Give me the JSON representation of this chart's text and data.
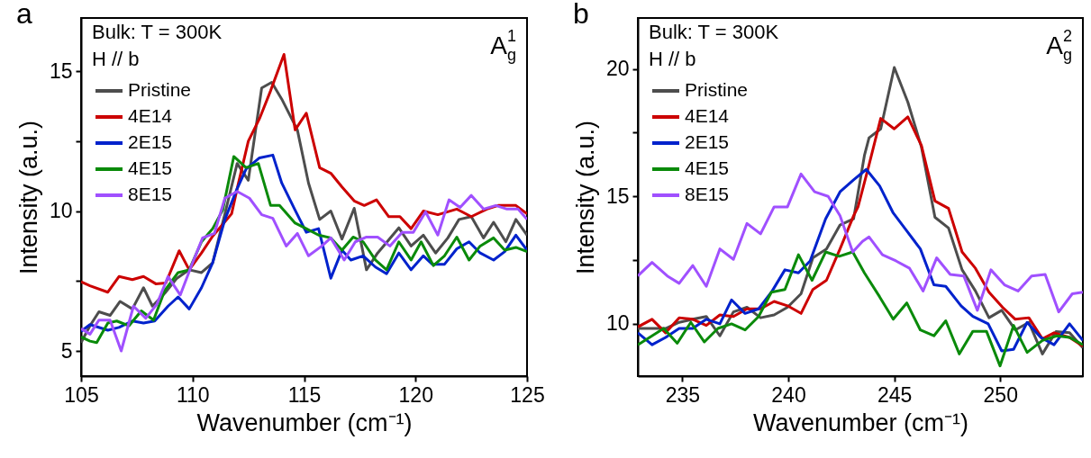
{
  "chart_data": [
    {
      "type": "line",
      "xlabel": "Wavenumber (cm⁻¹)",
      "ylabel": "Intensity (a.u.)",
      "annotations": [
        "a",
        "Bulk: T = 300K",
        "H // b",
        "A$_{g}$$^{1}$"
      ],
      "xlim": [
        105,
        125
      ],
      "xticks": [
        105,
        110,
        115,
        120,
        125
      ],
      "ylim": [
        4.1,
        16.9
      ],
      "yticks": [
        5,
        {
          "value": 7.5,
          "label": null
        },
        10,
        {
          "value": 12.5,
          "label": null
        },
        15
      ],
      "legend": "top left",
      "series": [
        {
          "name": "Pristine",
          "color": "#4d4d4d",
          "x": [
            105,
            105.4,
            105.8,
            106.3,
            106.75,
            107.3,
            107.8,
            108.2,
            108.75,
            109.3,
            109.85,
            110.4,
            110.9,
            111.45,
            112.0,
            112.5,
            113.1,
            113.55,
            114.0,
            114.7,
            115.2,
            115.7,
            116.2,
            116.7,
            117.25,
            117.8,
            118.3,
            119.25,
            119.8,
            120.35,
            120.9,
            121.45,
            121.95,
            122.5,
            123.05,
            123.5,
            124.05,
            124.5,
            125.0
          ],
          "values": [
            5.3,
            5.9,
            6.4,
            6.27,
            6.77,
            6.5,
            7.26,
            6.6,
            7.06,
            7.6,
            7.9,
            7.8,
            8.15,
            9.9,
            11.7,
            11.1,
            14.4,
            14.6,
            14.0,
            12.9,
            11.0,
            9.7,
            10.0,
            9.0,
            10.1,
            7.9,
            8.5,
            9.4,
            8.75,
            9.14,
            8.5,
            9.04,
            9.7,
            9.8,
            9.04,
            9.6,
            8.9,
            9.7,
            9.14
          ]
        },
        {
          "name": "4E14",
          "color": "#cc0000",
          "x": [
            105,
            105.4,
            106.2,
            106.7,
            107.3,
            107.8,
            108.35,
            108.8,
            109.4,
            109.85,
            110.4,
            110.9,
            111.75,
            112.0,
            112.5,
            113.0,
            113.5,
            114.1,
            114.6,
            115.1,
            115.7,
            116.2,
            116.7,
            117.25,
            117.7,
            118.25,
            118.8,
            119.3,
            119.8,
            120.35,
            121.0,
            121.85,
            122.5,
            123.2,
            123.7,
            124.5,
            125.0
          ],
          "values": [
            7.47,
            7.33,
            7.1,
            7.66,
            7.55,
            7.66,
            7.4,
            7.43,
            8.58,
            7.9,
            8.5,
            9.1,
            9.9,
            10.8,
            12.5,
            13.3,
            14.3,
            15.6,
            12.9,
            13.5,
            11.55,
            11.35,
            10.86,
            10.36,
            10.2,
            10.4,
            9.8,
            9.8,
            9.37,
            10.0,
            9.87,
            10.07,
            9.8,
            10.07,
            10.2,
            10.2,
            9.9
          ]
        },
        {
          "name": "2E15",
          "color": "#0022cc",
          "x": [
            105,
            105.4,
            106.2,
            106.7,
            107.3,
            107.8,
            108.3,
            108.9,
            109.35,
            109.85,
            110.4,
            110.9,
            111.45,
            112.0,
            112.4,
            113.0,
            113.6,
            114.0,
            114.6,
            115.1,
            115.65,
            116.2,
            116.7,
            117.1,
            117.65,
            118.2,
            118.7,
            119.25,
            119.8,
            120.35,
            120.75,
            121.3,
            121.85,
            122.4,
            122.9,
            123.5,
            124.0,
            124.5,
            125.0
          ],
          "values": [
            5.7,
            5.94,
            5.74,
            5.84,
            6.07,
            6.0,
            6.07,
            6.6,
            6.93,
            6.5,
            7.26,
            8.15,
            9.7,
            10.8,
            11.5,
            11.9,
            12.0,
            11.0,
            10.03,
            9.24,
            9.37,
            7.6,
            8.6,
            8.25,
            8.4,
            8.0,
            7.76,
            8.5,
            7.9,
            8.4,
            8.1,
            8.1,
            8.65,
            8.9,
            8.5,
            8.25,
            8.55,
            9.14,
            8.6
          ]
        },
        {
          "name": "4E15",
          "color": "#0a8a0a",
          "x": [
            105,
            105.4,
            105.7,
            106.2,
            106.6,
            107.15,
            107.7,
            108.25,
            108.75,
            109.35,
            109.85,
            110.4,
            110.9,
            111.35,
            111.85,
            112.4,
            112.95,
            113.5,
            113.9,
            114.6,
            115.1,
            115.65,
            116.2,
            116.7,
            117.2,
            117.65,
            118.2,
            118.7,
            119.25,
            119.8,
            120.25,
            120.8,
            121.3,
            121.85,
            122.4,
            122.9,
            123.5,
            124.0,
            124.5,
            125.0
          ],
          "values": [
            5.5,
            5.35,
            5.3,
            6.0,
            6.07,
            5.9,
            6.43,
            6.1,
            7.16,
            7.8,
            7.9,
            8.9,
            9.37,
            10.03,
            11.95,
            11.55,
            11.7,
            10.2,
            10.2,
            9.57,
            9.37,
            9.14,
            9.04,
            8.6,
            9.07,
            8.9,
            8.25,
            7.9,
            8.9,
            8.25,
            8.9,
            8.05,
            8.4,
            9.07,
            8.25,
            8.75,
            9.04,
            8.6,
            8.7,
            8.55
          ]
        },
        {
          "name": "8E15",
          "color": "#a050ff",
          "x": [
            105,
            105.4,
            105.8,
            106.3,
            106.8,
            107.35,
            107.9,
            108.4,
            108.9,
            109.45,
            109.95,
            110.45,
            110.98,
            111.45,
            112.0,
            112.55,
            113.1,
            113.6,
            114.2,
            114.7,
            115.2,
            115.8,
            116.2,
            116.8,
            117.3,
            117.8,
            118.3,
            118.85,
            119.4,
            119.9,
            120.45,
            121.0,
            121.5,
            122.0,
            122.5,
            123.05,
            123.6,
            124.1,
            124.6,
            125.0
          ],
          "values": [
            5.8,
            5.6,
            6.1,
            6.1,
            5.0,
            6.6,
            6.17,
            6.67,
            7.66,
            7.0,
            8.05,
            9.04,
            9.2,
            10.46,
            10.7,
            10.46,
            9.87,
            9.74,
            8.75,
            9.2,
            8.4,
            8.75,
            9.04,
            8.25,
            8.9,
            9.07,
            9.07,
            8.75,
            9.24,
            9.24,
            9.97,
            9.14,
            10.4,
            10.13,
            10.56,
            10.07,
            10.2,
            10.07,
            10.07,
            9.7
          ]
        }
      ]
    },
    {
      "type": "line",
      "xlabel": "Wavenumber (cm⁻¹)",
      "ylabel": "Intensity (a.u.)",
      "annotations": [
        "b",
        "Bulk: T = 300K",
        "H // b",
        "A$_{g}$$^{2}$"
      ],
      "xlim": [
        232.9,
        253.9
      ],
      "xticks": [
        235,
        240,
        245,
        250
      ],
      "ylim": [
        7.95,
        22.0
      ],
      "yticks": [
        10,
        {
          "value": 12.5,
          "label": null
        },
        15,
        {
          "value": 17.5,
          "label": null
        },
        20
      ],
      "legend": "top left",
      "series": [
        {
          "name": "Pristine",
          "color": "#4d4d4d",
          "x": [
            232.9,
            233.57,
            234.21,
            234.85,
            235.49,
            236.13,
            236.77,
            237.41,
            238.05,
            238.69,
            239.33,
            239.96,
            240.6,
            241.16,
            241.8,
            242.44,
            243.08,
            243.59,
            243.81,
            244.36,
            245.0,
            245.64,
            246.28,
            246.92,
            247.56,
            248.2,
            248.83,
            249.47,
            250.07,
            250.71,
            251.35,
            251.99,
            252.63,
            253.27,
            253.9
          ],
          "values": [
            9.82,
            9.82,
            9.82,
            10.06,
            10.18,
            10.29,
            9.53,
            10.47,
            10.65,
            10.24,
            10.35,
            10.65,
            11.18,
            12.59,
            12.94,
            13.88,
            14.12,
            16.6,
            17.3,
            17.65,
            20.06,
            18.7,
            16.94,
            14.18,
            13.76,
            12.12,
            11.29,
            10.24,
            10.53,
            9.76,
            10.06,
            8.82,
            9.7,
            9.65,
            9.06
          ]
        },
        {
          "name": "4E14",
          "color": "#cc0000",
          "x": [
            232.9,
            233.57,
            234.21,
            234.85,
            235.49,
            236.13,
            236.77,
            237.41,
            238.05,
            238.69,
            239.33,
            239.96,
            240.6,
            241.16,
            241.8,
            242.44,
            243.08,
            243.29,
            243.81,
            244.36,
            245.0,
            245.64,
            246.28,
            246.92,
            247.56,
            248.2,
            248.83,
            249.47,
            250.11,
            250.71,
            251.35,
            251.99,
            252.54,
            253.27,
            253.9
          ],
          "values": [
            9.88,
            10.18,
            9.65,
            10.24,
            10.18,
            9.94,
            10.35,
            10.29,
            10.59,
            10.59,
            10.88,
            10.71,
            10.41,
            11.35,
            11.71,
            12.94,
            14.24,
            14.59,
            16.24,
            18.06,
            17.65,
            18.12,
            17.0,
            14.82,
            14.53,
            12.82,
            12.18,
            11.24,
            10.65,
            10.18,
            10.24,
            9.41,
            9.65,
            9.47,
            9.12
          ]
        },
        {
          "name": "2E15",
          "color": "#0022cc",
          "x": [
            232.9,
            233.57,
            234.21,
            234.85,
            235.49,
            236.13,
            236.77,
            237.32,
            237.96,
            238.6,
            239.24,
            239.84,
            240.48,
            241.03,
            241.76,
            242.44,
            243.08,
            243.68,
            244.31,
            244.95,
            245.59,
            246.23,
            246.87,
            247.43,
            248.15,
            248.71,
            249.43,
            250.07,
            250.63,
            251.27,
            251.91,
            252.54,
            253.27,
            253.9
          ],
          "values": [
            9.65,
            9.18,
            9.47,
            9.82,
            9.82,
            10.18,
            10.0,
            10.94,
            10.41,
            10.59,
            11.29,
            12.12,
            12.0,
            12.47,
            14.12,
            15.18,
            15.65,
            16.06,
            15.41,
            14.35,
            13.65,
            12.94,
            11.53,
            11.47,
            10.71,
            10.29,
            10.0,
            8.94,
            9.0,
            10.06,
            9.47,
            9.18,
            10.0,
            9.35
          ]
        },
        {
          "name": "4E15",
          "color": "#0a8a0a",
          "x": [
            232.9,
            233.57,
            234.12,
            234.76,
            235.4,
            236.04,
            236.68,
            237.32,
            237.96,
            238.6,
            239.2,
            239.84,
            240.48,
            241.12,
            241.76,
            242.4,
            243.04,
            243.59,
            244.31,
            244.95,
            245.59,
            246.23,
            246.87,
            247.43,
            248.07,
            248.71,
            249.35,
            249.99,
            250.63,
            251.27,
            251.99,
            252.67,
            253.27,
            253.9
          ],
          "values": [
            9.18,
            9.53,
            9.82,
            9.24,
            10.06,
            9.29,
            9.82,
            10.0,
            9.76,
            10.29,
            11.24,
            11.35,
            12.71,
            11.71,
            12.82,
            12.65,
            12.82,
            12.0,
            11.06,
            10.18,
            10.82,
            9.76,
            9.53,
            10.12,
            8.82,
            9.71,
            9.71,
            8.35,
            9.94,
            8.88,
            9.35,
            9.53,
            9.47,
            9.18
          ]
        },
        {
          "name": "8E15",
          "color": "#a050ff",
          "x": [
            232.9,
            233.57,
            234.29,
            234.85,
            235.49,
            236.13,
            236.77,
            237.41,
            238.05,
            238.69,
            239.33,
            239.96,
            240.6,
            241.24,
            241.88,
            242.44,
            243.04,
            243.5,
            243.81,
            244.44,
            245.08,
            245.72,
            246.36,
            247.0,
            247.64,
            248.28,
            248.92,
            249.56,
            250.2,
            250.84,
            251.48,
            252.12,
            252.76,
            253.4,
            253.9
          ],
          "values": [
            11.88,
            12.41,
            11.88,
            11.59,
            12.29,
            11.47,
            12.94,
            12.53,
            13.94,
            13.53,
            14.59,
            14.59,
            15.88,
            15.18,
            15.0,
            14.24,
            12.82,
            13.24,
            13.41,
            12.71,
            12.47,
            12.18,
            11.29,
            12.59,
            11.94,
            11.88,
            10.53,
            12.12,
            11.53,
            11.29,
            11.88,
            11.94,
            10.47,
            11.18,
            11.24
          ]
        }
      ]
    }
  ]
}
